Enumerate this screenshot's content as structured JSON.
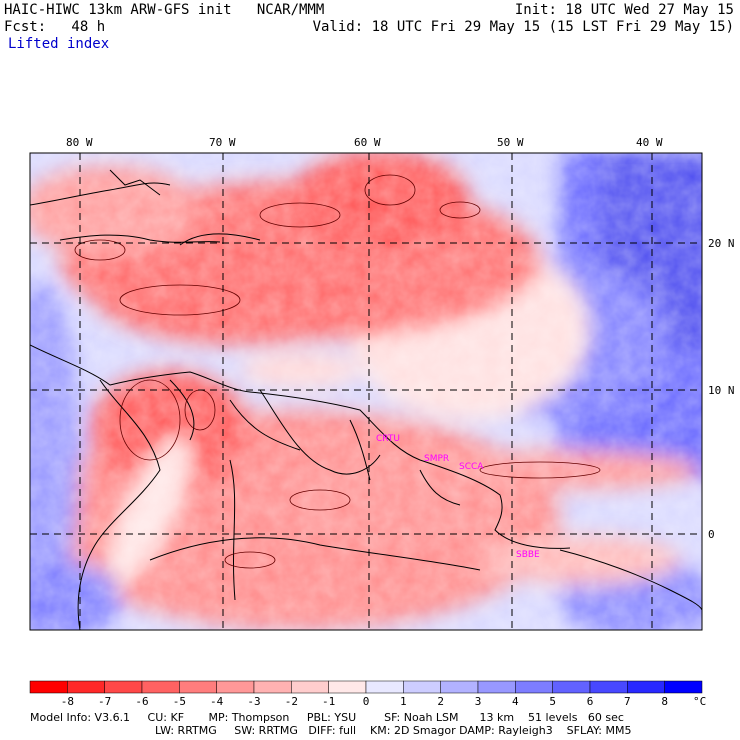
{
  "header": {
    "title": "HAIC-HIWC 13km ARW-GFS init   NCAR/MMM",
    "fcst": "Fcst:   48 h",
    "field": "Lifted index",
    "init": "Init: 18 UTC Wed 27 May 15",
    "valid": "Valid: 18 UTC Fri 29 May 15 (15 LST Fri 29 May 15)"
  },
  "map": {
    "lon_labels": [
      "80 W",
      "70 W",
      "60 W",
      "50 W",
      "40 W"
    ],
    "lat_labels": [
      "20 N",
      "10 N",
      "0"
    ],
    "cities": [
      "CRTU",
      "SMPR",
      "SCCA",
      "SBBE"
    ]
  },
  "colorbar": {
    "tick_labels": [
      "-8",
      "-7",
      "-6",
      "-5",
      "-4",
      "-3",
      "-2",
      "-1",
      "0",
      "1",
      "2",
      "3",
      "4",
      "5",
      "6",
      "7",
      "8"
    ],
    "unit": "°C",
    "colors": [
      "#ff0000",
      "#ff2828",
      "#ff4848",
      "#ff6262",
      "#ff7d7d",
      "#ff9898",
      "#ffb2b2",
      "#ffcdcd",
      "#ffe8e8",
      "#e8e8ff",
      "#cdcdff",
      "#b2b2ff",
      "#9898ff",
      "#7d7dff",
      "#6262ff",
      "#4848ff",
      "#2828ff",
      "#0000ff"
    ]
  },
  "footer": {
    "line1": "Model Info: V3.6.1     CU: KF       MP: Thompson     PBL: YSU        SF: Noah LSM      13 km    51 levels   60 sec",
    "line2": "LW: RRTMG     SW: RRTMG   DIFF: full    KM: 2D Smagor DAMP: Rayleigh3    SFLAY: MM5"
  }
}
